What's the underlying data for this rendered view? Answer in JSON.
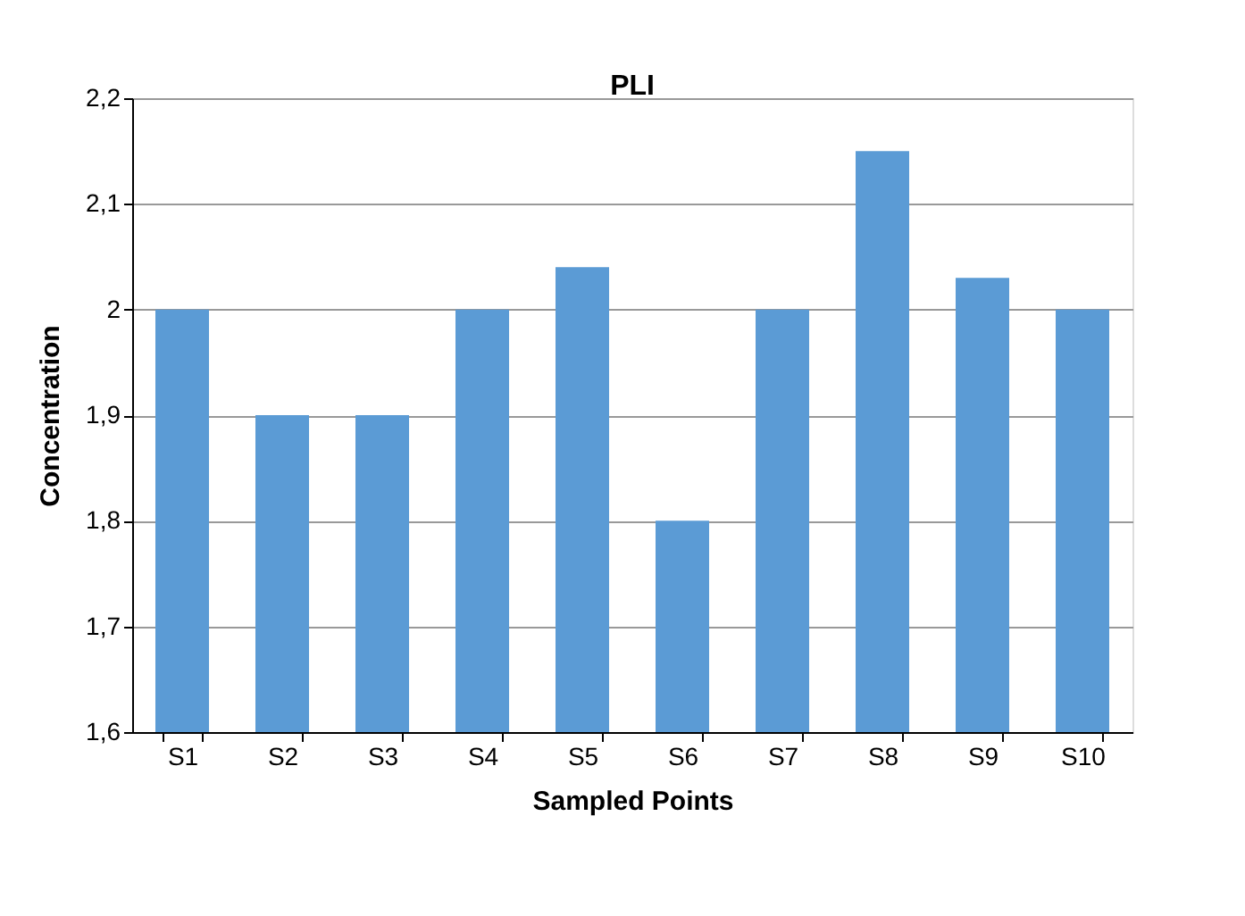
{
  "chart_data": {
    "type": "bar",
    "title": "PLI",
    "xlabel": "Sampled Points",
    "ylabel": "Concentration",
    "categories": [
      "S1",
      "S2",
      "S3",
      "S4",
      "S5",
      "S6",
      "S7",
      "S8",
      "S9",
      "S10"
    ],
    "values": [
      2.0,
      1.9,
      1.9,
      2.0,
      2.04,
      1.8,
      2.0,
      2.15,
      2.03,
      2.0
    ],
    "color": "#5b9bd5",
    "ylim": [
      1.6,
      2.2
    ],
    "yticks": [
      {
        "value": 1.6,
        "label": "1,6"
      },
      {
        "value": 1.7,
        "label": "1,7"
      },
      {
        "value": 1.8,
        "label": "1,8"
      },
      {
        "value": 1.9,
        "label": "1,9"
      },
      {
        "value": 2,
        "label": "2"
      },
      {
        "value": 2.1,
        "label": "2,1"
      },
      {
        "value": 2.2,
        "label": "2,2"
      }
    ],
    "grid": "y"
  }
}
